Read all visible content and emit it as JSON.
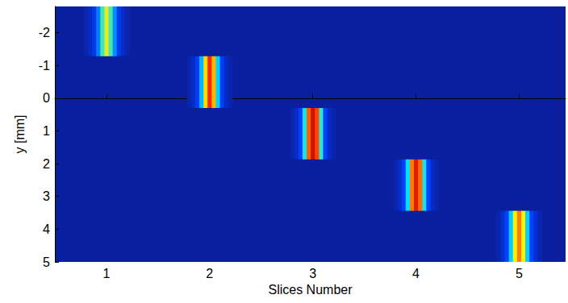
{
  "chart_data": {
    "type": "heatmap",
    "xlabel": "Slices Number",
    "ylabel": "y [mm]",
    "xlim": [
      0.5,
      5.45
    ],
    "ylim": [
      -2.8,
      5
    ],
    "xticks": [
      1,
      2,
      3,
      4,
      5
    ],
    "yticks": [
      -2,
      -1,
      0,
      1,
      2,
      3,
      4,
      5
    ],
    "value_range": [
      0,
      1
    ],
    "slices": [
      {
        "y_range": [
          -2.8,
          -1.28
        ],
        "x": [
          0.8,
          0.84,
          0.88,
          0.92,
          0.96,
          1.0,
          1.04,
          1.08,
          1.12,
          1.16,
          1.2
        ],
        "intensity": [
          0.03,
          0.08,
          0.15,
          0.28,
          0.45,
          0.58,
          0.46,
          0.3,
          0.16,
          0.08,
          0.03
        ]
      },
      {
        "y_range": [
          -1.28,
          0.3
        ],
        "x": [
          1.8,
          1.84,
          1.88,
          1.92,
          1.96,
          2.0,
          2.04,
          2.08,
          2.12,
          2.16,
          2.2
        ],
        "intensity": [
          0.03,
          0.08,
          0.18,
          0.35,
          0.62,
          0.82,
          0.66,
          0.38,
          0.18,
          0.08,
          0.03
        ]
      },
      {
        "y_range": [
          0.3,
          1.87
        ],
        "x": [
          2.8,
          2.84,
          2.88,
          2.92,
          2.96,
          3.0,
          3.04,
          3.08,
          3.12,
          3.16,
          3.2
        ],
        "intensity": [
          0.03,
          0.08,
          0.2,
          0.42,
          0.75,
          0.92,
          0.78,
          0.44,
          0.2,
          0.08,
          0.03
        ]
      },
      {
        "y_range": [
          1.87,
          3.44
        ],
        "x": [
          3.8,
          3.84,
          3.88,
          3.92,
          3.96,
          4.0,
          4.04,
          4.08,
          4.12,
          4.16,
          4.2
        ],
        "intensity": [
          0.03,
          0.08,
          0.2,
          0.4,
          0.72,
          0.88,
          0.74,
          0.42,
          0.2,
          0.08,
          0.03
        ]
      },
      {
        "y_range": [
          3.44,
          5
        ],
        "x": [
          4.8,
          4.84,
          4.88,
          4.92,
          4.96,
          5.0,
          5.04,
          5.08,
          5.12,
          5.16,
          5.2
        ],
        "intensity": [
          0.03,
          0.1,
          0.2,
          0.38,
          0.6,
          0.72,
          0.6,
          0.38,
          0.2,
          0.1,
          0.03
        ]
      }
    ]
  }
}
